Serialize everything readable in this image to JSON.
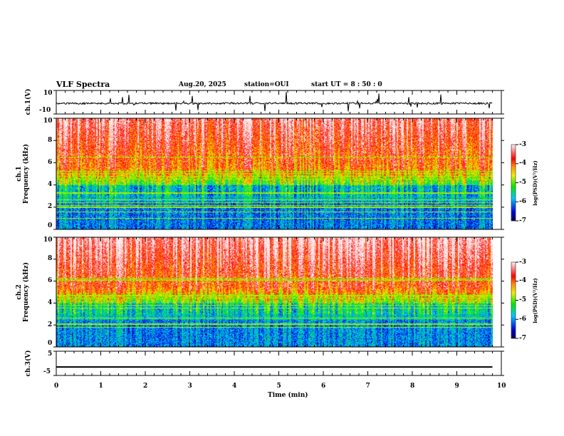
{
  "header": {
    "title": "VLF Spectra",
    "date": "Aug.20, 2025",
    "station": "station=OUI",
    "start": "start  UT =   8 : 50 : 0"
  },
  "chart_data": [
    {
      "type": "line",
      "name": "ch1-waveform",
      "ylabel": "ch.1(V)",
      "ylim": [
        -10,
        10
      ],
      "yticks": [
        "10",
        "-10"
      ],
      "xlim": [
        0,
        10
      ],
      "data_end_min": 9.8,
      "description_level": "noise around -1 V with impulsive spikes"
    },
    {
      "type": "heatmap",
      "name": "ch1-spectrogram",
      "ylabel": "ch.1 Frequency (kHz)",
      "ylim": [
        0,
        10
      ],
      "yticks": [
        "0",
        "2",
        "4",
        "6",
        "8",
        "10"
      ],
      "xlim": [
        0,
        10
      ],
      "colorbar": {
        "label": "log(PSD)(V²/Hz)",
        "range": [
          -7,
          -3
        ],
        "ticks": [
          "-3",
          "-4",
          "-5",
          "-6",
          "-7"
        ]
      }
    },
    {
      "type": "heatmap",
      "name": "ch2-spectrogram",
      "ylabel": "ch.2 Frequency (kHz)",
      "ylim": [
        0,
        10
      ],
      "yticks": [
        "0",
        "2",
        "4",
        "6",
        "8",
        "10"
      ],
      "xlim": [
        0,
        10
      ],
      "colorbar": {
        "label": "log(PSD)(V²/Hz)",
        "range": [
          -7,
          -3
        ],
        "ticks": [
          "-3",
          "-4",
          "-5",
          "-6",
          "-7"
        ]
      }
    },
    {
      "type": "line",
      "name": "ch3-waveform",
      "ylabel": "ch.3(V)",
      "ylim": [
        -5,
        5
      ],
      "yticks": [
        "5",
        "-5"
      ],
      "xlim": [
        0,
        10
      ],
      "constant_value": -1.5
    }
  ],
  "xaxis": {
    "label": "Time  (min)",
    "ticks": [
      "0",
      "1",
      "2",
      "3",
      "4",
      "5",
      "6",
      "7",
      "8",
      "9",
      "10"
    ]
  },
  "labels": {
    "ch1": "ch.1(V)",
    "ch1f": "ch.1",
    "ch2f": "ch.2",
    "freq": "Frequency  (kHz)",
    "ch3": "ch.3(V)",
    "cbar": "log(PSD)(V²/Hz)"
  }
}
